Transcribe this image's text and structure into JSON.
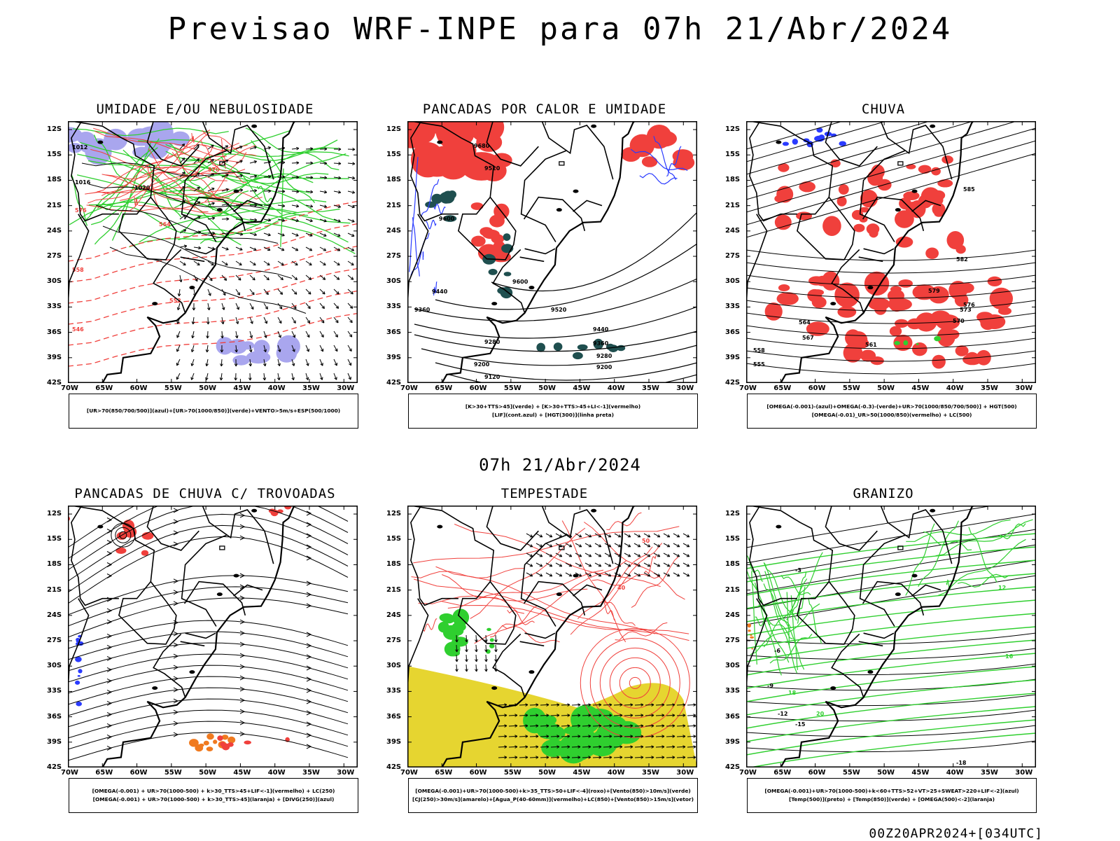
{
  "title": "Previsao WRF-INPE  para 07h 21/Abr/2024",
  "mid_date": "07h 21/Abr/2024",
  "footer": "00Z20APR2024+[034UTC]",
  "lat_labels": [
    "12S",
    "15S",
    "18S",
    "21S",
    "24S",
    "27S",
    "30S",
    "33S",
    "36S",
    "39S",
    "42S"
  ],
  "lon_labels": [
    "70W",
    "65W",
    "60W",
    "55W",
    "50W",
    "45W",
    "40W",
    "35W",
    "30W"
  ],
  "colors": {
    "red": "#f0403c",
    "green": "#2fcf2f",
    "blue": "#2a3bff",
    "lightblue": "#a9a6ee",
    "darkteal": "#1f4f4f",
    "yellow": "#e6d530",
    "orange": "#f07a1f"
  },
  "panels": [
    {
      "id": "umidade",
      "title": "UMIDADE E/OU NEBULOSIDADE",
      "legend": [
        "[UR>70(850/700/500)](azul)+[UR>70(1000/850)](verde)+VENTO>5m/s+ESP(500/1000)"
      ],
      "contour_labels": [
        "1012",
        "1016",
        "1020",
        "570",
        "576",
        "564",
        "558",
        "552",
        "546"
      ]
    },
    {
      "id": "pancadas_calor",
      "title": "PANCADAS POR CALOR E UMIDADE",
      "legend": [
        "[K>30+TTS>45](verde) + [K>30+TTS>45+LI<-1](vermelho)",
        "[LIF](cont.azul) + [HGT(300)](linha preta)"
      ],
      "contour_labels": [
        "9680",
        "9600",
        "9520",
        "9440",
        "9360",
        "9280",
        "9200",
        "9120"
      ]
    },
    {
      "id": "chuva",
      "title": "CHUVA",
      "legend": [
        "[OMEGA(-0.001)-(azul)+OMEGA(-0.3)-(verde)+UR>70(1000/850/700/500)] + HGT(500)",
        "[OMEGA(-0.01)_UR>50(1000/850)(vermelho) + LC(500)"
      ],
      "contour_labels": [
        "585",
        "582",
        "579",
        "576",
        "573",
        "570",
        "567",
        "564",
        "561",
        "558",
        "555"
      ]
    },
    {
      "id": "pancadas_trovoadas",
      "title": "PANCADAS DE CHUVA C/ TROVOADAS",
      "legend": [
        "[OMEGA(-0.001) + UR>70(1000-500) + k>30_TTS>45+LIF<-1](vermelho) + LC(250)",
        "[OMEGA(-0.001) + UR>70(1000-500) + k>30_TTS>45](laranja) + [DIVG(250)](azul)"
      ],
      "contour_labels": []
    },
    {
      "id": "tempestade",
      "title": "TEMPESTADE",
      "legend": [
        "[OMEGA(-0.001)+UR>70(1000-500)+k>35_TTS>50+LIF<-4](roxo)+[Vento(850)>10m/s](verde)",
        "[CJ(250)>30m/s](amarelo)+[Agua_P(40-60mm)](vermelho)+LC(850)+[Vento(850)>15m/s](vetor)"
      ],
      "contour_labels": [
        "50",
        "40"
      ]
    },
    {
      "id": "granizo",
      "title": "GRANIZO",
      "legend": [
        "[OMEGA(-0.001)+UR>70(1000-500)+k<60+TTS>52+VT>25+SWEAT>220+LIF<-2](azul)",
        "[Temp(500)](preto) + [Temp(850)](verde) + [OMEGA(500)<-2](laranja)"
      ],
      "contour_labels": [
        "-3",
        "-6",
        "-9",
        "-12",
        "-15",
        "-18",
        "12",
        "16",
        "18",
        "20"
      ]
    }
  ]
}
